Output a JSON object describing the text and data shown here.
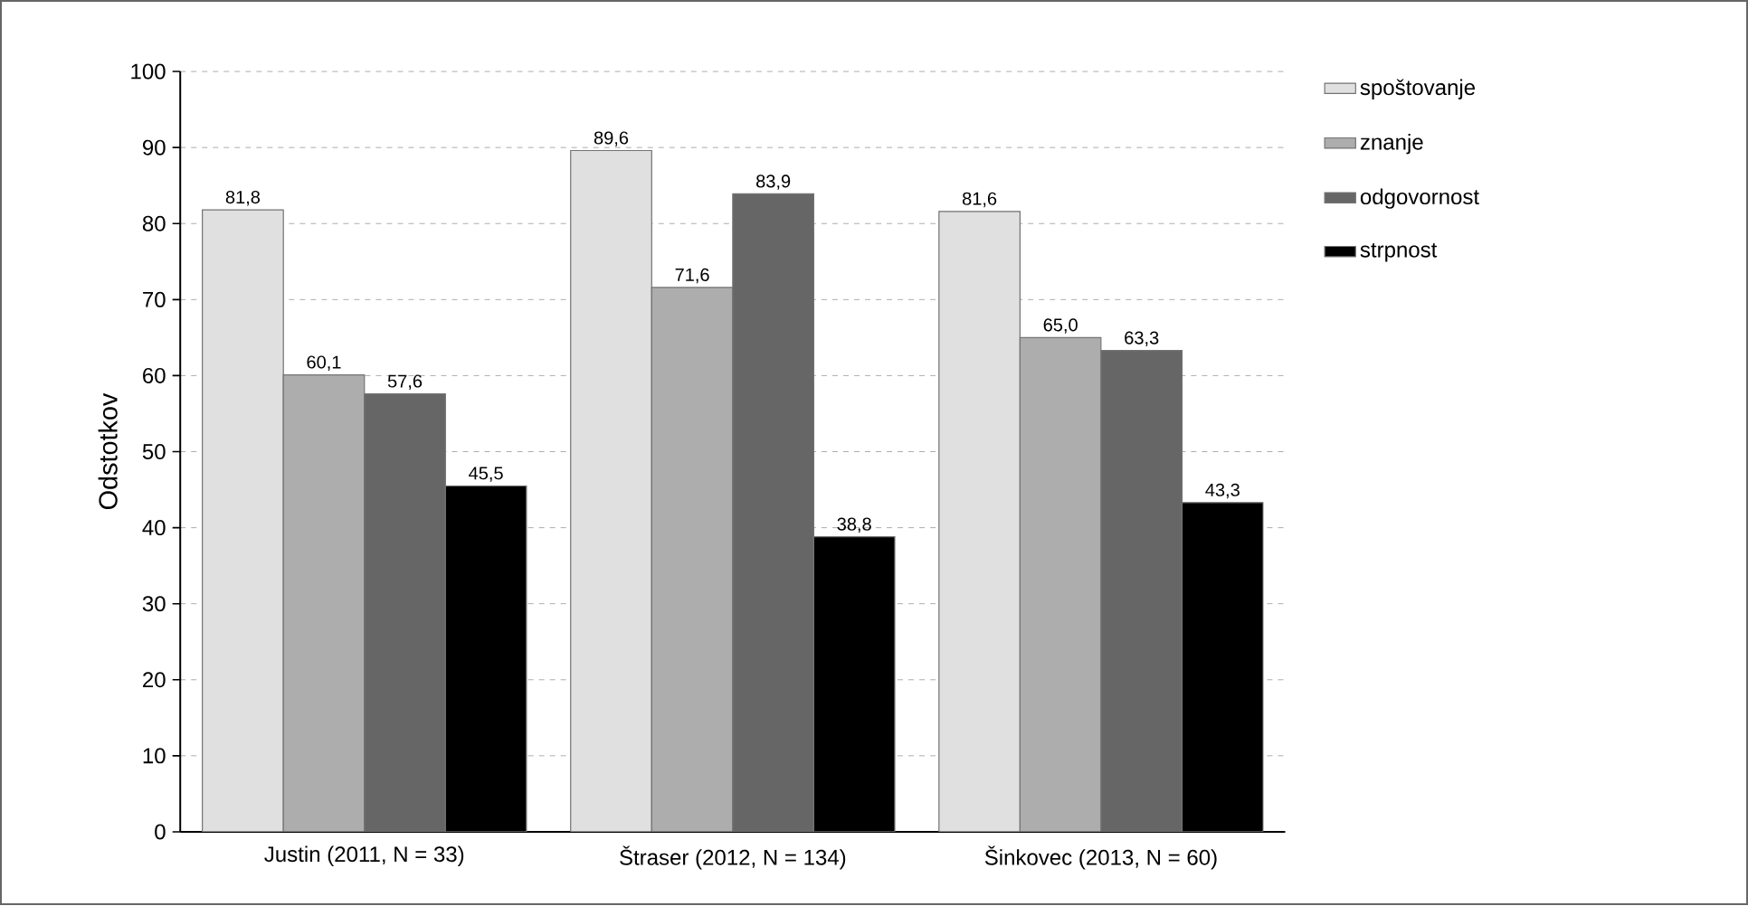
{
  "chart_data": {
    "type": "bar",
    "ylabel": "Odstotkov",
    "categories": [
      "Justin (2011, N = 33)",
      "Štraser (2012, N = 134)",
      "Šinkovec (2013, N = 60)"
    ],
    "series": [
      {
        "name": "spoštovanje",
        "color": "#e0e0e0",
        "values": [
          81.8,
          89.6,
          81.6
        ],
        "value_labels": [
          "81,8",
          "89,6",
          "81,6"
        ]
      },
      {
        "name": "znanje",
        "color": "#adadad",
        "values": [
          60.1,
          71.6,
          65.0
        ],
        "value_labels": [
          "60,1",
          "71,6",
          "65,0"
        ]
      },
      {
        "name": "odgovornost",
        "color": "#666666",
        "values": [
          57.6,
          83.9,
          63.3
        ],
        "value_labels": [
          "57,6",
          "83,9",
          "63,3"
        ]
      },
      {
        "name": "strpnost",
        "color": "#000000",
        "values": [
          45.5,
          38.8,
          43.3
        ],
        "value_labels": [
          "45,5",
          "38,8",
          "43,3"
        ]
      }
    ],
    "ylim": [
      0,
      100
    ],
    "yticks": [
      0,
      10,
      20,
      30,
      40,
      50,
      60,
      70,
      80,
      90,
      100
    ],
    "grid": "y",
    "legend": "right"
  }
}
